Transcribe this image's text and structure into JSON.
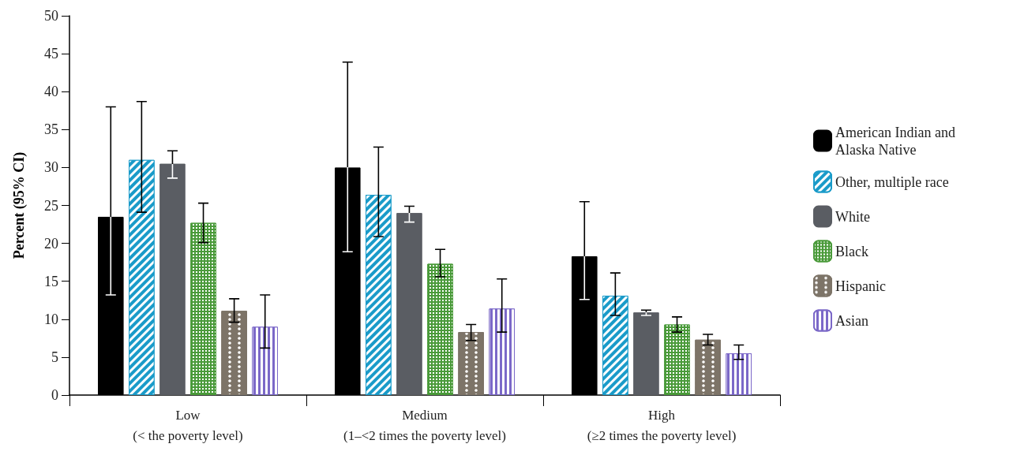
{
  "chart_data": {
    "type": "bar",
    "ylabel": "Percent (95% CI)",
    "categories": [
      "Low\n(< the poverty level)",
      "Medium\n(1–<2 times the poverty level)",
      "High\n(≥2 times the poverty level)"
    ],
    "series": [
      {
        "name": "American Indian and Alaska Native",
        "color": "#000000",
        "values": [
          23.5,
          30,
          18.3
        ],
        "errors": [
          [
            13.2,
            38
          ],
          [
            18.9,
            43.9
          ],
          [
            12.6,
            25.5
          ]
        ]
      },
      {
        "name": "Other, multiple race",
        "color": "#1a9bc9",
        "values": [
          31,
          26.4,
          13.1
        ],
        "errors": [
          [
            24.1,
            38.7
          ],
          [
            20.9,
            32.7
          ],
          [
            10.5,
            16.1
          ]
        ]
      },
      {
        "name": "White",
        "color": "#5a5d63",
        "values": [
          30.5,
          24,
          10.9
        ],
        "errors": [
          [
            28.6,
            32.2
          ],
          [
            22.8,
            24.9
          ],
          [
            10.5,
            11.2
          ]
        ]
      },
      {
        "name": "Black",
        "color": "#4a9a3a",
        "values": [
          22.7,
          17.3,
          9.3
        ],
        "errors": [
          [
            20.1,
            25.3
          ],
          [
            15.6,
            19.2
          ],
          [
            8.3,
            10.3
          ]
        ]
      },
      {
        "name": "Hispanic",
        "color": "#7d7468",
        "values": [
          11.1,
          8.3,
          7.3
        ],
        "errors": [
          [
            9.6,
            12.7
          ],
          [
            7.2,
            9.3
          ],
          [
            6.6,
            8.0
          ]
        ]
      },
      {
        "name": "Asian",
        "color": "#7b68c8",
        "values": [
          9.0,
          11.4,
          5.5
        ],
        "errors": [
          [
            6.2,
            13.2
          ],
          [
            8.3,
            15.3
          ],
          [
            4.7,
            6.6
          ]
        ]
      }
    ],
    "ylim": [
      0,
      50
    ],
    "yticks": [
      0,
      5,
      10,
      15,
      20,
      25,
      30,
      35,
      40,
      45,
      50
    ],
    "grid": false,
    "legend": "right"
  }
}
